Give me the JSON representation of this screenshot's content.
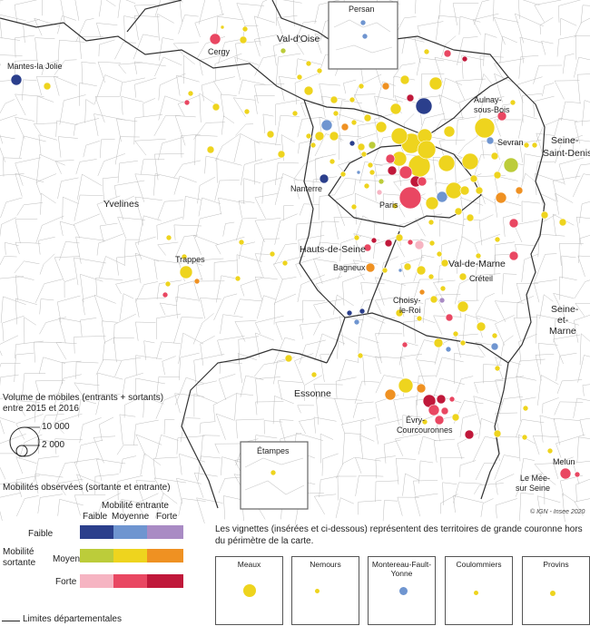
{
  "departments": [
    "Val-d'Oise",
    "Yvelines",
    "Seine-Saint-Denis",
    "Hauts-de-Seine",
    "Val-de-Marne",
    "Seine-et-Marne",
    "Essonne"
  ],
  "cities": [
    "Mantes-la Jolie",
    "Cergy",
    "Persan",
    "Aulnay-sous-Bois",
    "Sevran",
    "Nanterre",
    "Paris",
    "Trappes",
    "Bagneux",
    "Créteil",
    "Choisy-le-Roi",
    "Évry-Courcouronnes",
    "Étampes",
    "Melun",
    "Le Mée-sur Seine"
  ],
  "colors": {
    "faible_faible": "#2b3f8c",
    "faible_moyenne": "#6f95d0",
    "faible_forte": "#a98bc4",
    "moyenne_faible": "#bccc3a",
    "moyenne_moyenne": "#eed41e",
    "moyenne_forte": "#ef9122",
    "forte_faible": "#f6b4c2",
    "forte_moyenne": "#e94762",
    "forte_forte": "#c0183a",
    "boundary": "#333333",
    "commune": "#bdbdbd"
  },
  "credit": "© IGN - Insee 2020",
  "legend": {
    "volume_title": "Volume de mobiles (entrants + sortants) entre 2015 et 2016",
    "volume_values": [
      "10 000",
      "2 000"
    ],
    "mobility_title": "Mobilités observées (sortante et entrante)",
    "entrante_label": "Mobilité entrante",
    "sortante_label": "Mobilité sortante",
    "levels": [
      "Faible",
      "Moyenne",
      "Forte"
    ],
    "limits_label": "Limites départementales"
  },
  "vignettes": {
    "note": "Les vignettes (insérées et ci-dessous) représentent des territoires de grande couronne hors du périmètre de la carte.",
    "items": [
      "Meaux",
      "Nemours",
      "Montereau-Fault-Yonne",
      "Coulommiers",
      "Provins"
    ]
  }
}
